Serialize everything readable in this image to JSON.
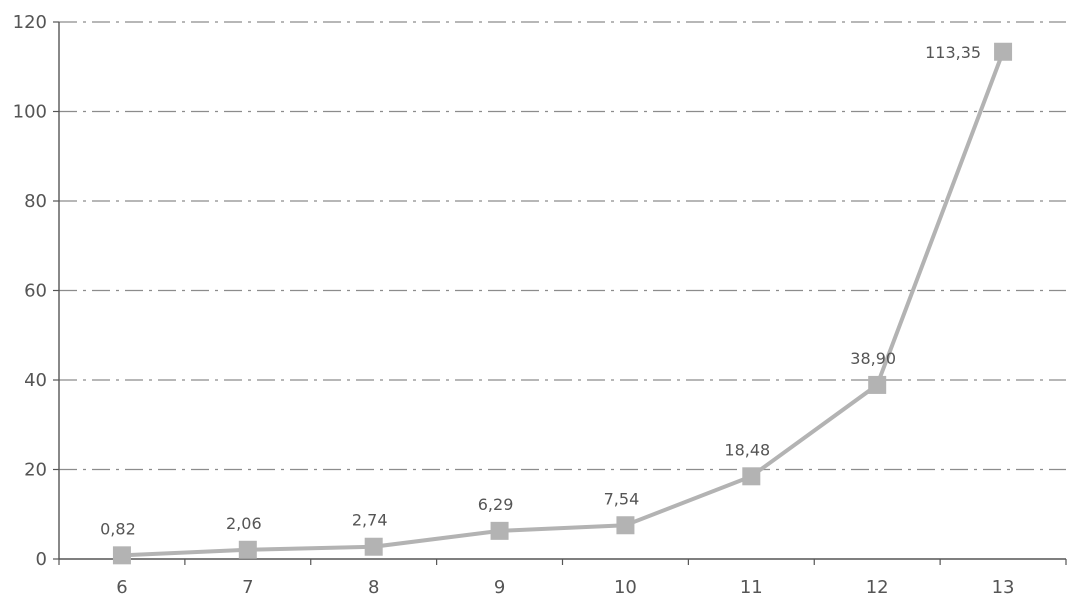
{
  "chart_data": {
    "type": "line",
    "title": "",
    "xlabel": "",
    "ylabel": "",
    "categories": [
      "6",
      "7",
      "8",
      "9",
      "10",
      "11",
      "12",
      "13"
    ],
    "series": [
      {
        "values": [
          0.82,
          2.06,
          2.74,
          6.29,
          7.54,
          18.48,
          38.9,
          113.35
        ],
        "data_labels": [
          "0,82",
          "2,06",
          "2,74",
          "6,29",
          "7,54",
          "18,48",
          "38,90",
          "113,35"
        ],
        "color": "#b3b3b3",
        "marker": "square"
      }
    ],
    "ylim": [
      0,
      120
    ],
    "yticks": [
      "0",
      "20",
      "40",
      "60",
      "80",
      "100",
      "120"
    ],
    "grid": true,
    "grid_style": "dash-dot",
    "legend": "none"
  }
}
